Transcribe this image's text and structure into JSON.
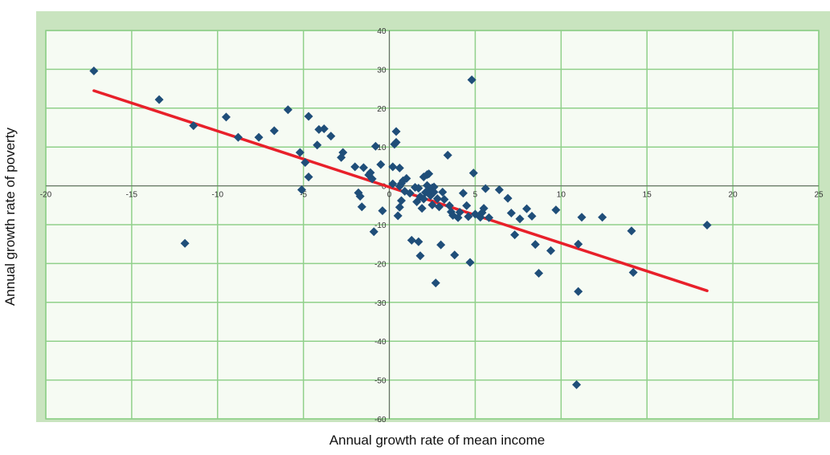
{
  "colors": {
    "outer_background": "#c9e4bf",
    "plot_background": "#f6fbf3",
    "gridline": "#90d08a",
    "axis": "#666666",
    "marker": "#1f4e79",
    "trend": "#e8202a"
  },
  "chart_data": {
    "type": "scatter",
    "title": "",
    "xlabel": "Annual growth rate of mean income",
    "ylabel": "Annual growth rate of poverty",
    "xlim": [
      -20,
      25
    ],
    "ylim": [
      -60,
      40
    ],
    "x_ticks": [
      -20,
      -15,
      -10,
      -5,
      0,
      5,
      10,
      15,
      20,
      25
    ],
    "y_ticks": [
      -60,
      -50,
      -40,
      -30,
      -20,
      -10,
      0,
      10,
      20,
      30,
      40
    ],
    "x_tick_labels": [
      "-20",
      "-15",
      "-10",
      "-5",
      "0",
      "5",
      "10",
      "15",
      "20",
      "25"
    ],
    "y_tick_labels": [
      "-60",
      "-50",
      "-40",
      "-30",
      "-20",
      "-10",
      "0",
      "10",
      "20",
      "30",
      "40"
    ],
    "grid": "horizontal and vertical",
    "marker": "diamond",
    "series": [
      {
        "points": [
          [
            -17.2,
            29.6
          ],
          [
            -13.4,
            22.2
          ],
          [
            -11.4,
            15.5
          ],
          [
            -11.9,
            -14.8
          ],
          [
            -9.5,
            17.7
          ],
          [
            -8.8,
            12.5
          ],
          [
            -7.6,
            12.5
          ],
          [
            -6.7,
            14.2
          ],
          [
            -5.9,
            19.6
          ],
          [
            -5.2,
            8.6
          ],
          [
            -5.1,
            -1.0
          ],
          [
            -4.9,
            6.0
          ],
          [
            -4.7,
            2.3
          ],
          [
            -4.7,
            17.9
          ],
          [
            -4.2,
            10.5
          ],
          [
            -4.1,
            14.5
          ],
          [
            -3.8,
            14.7
          ],
          [
            -3.4,
            12.8
          ],
          [
            -2.8,
            7.3
          ],
          [
            -2.7,
            8.6
          ],
          [
            -2.0,
            4.9
          ],
          [
            -1.8,
            -1.8
          ],
          [
            -1.7,
            -2.7
          ],
          [
            -1.6,
            -5.4
          ],
          [
            -1.5,
            4.7
          ],
          [
            -1.2,
            2.8
          ],
          [
            -1.1,
            3.4
          ],
          [
            -1.0,
            1.8
          ],
          [
            -0.9,
            -11.8
          ],
          [
            -0.8,
            10.2
          ],
          [
            -0.5,
            5.5
          ],
          [
            -0.4,
            -6.4
          ],
          [
            0.2,
            4.9
          ],
          [
            0.6,
            4.6
          ],
          [
            0.3,
            10.7
          ],
          [
            0.2,
            0.5
          ],
          [
            0.4,
            11.2
          ],
          [
            0.4,
            14.0
          ],
          [
            0.5,
            -7.7
          ],
          [
            0.6,
            -0.1
          ],
          [
            0.7,
            0.6
          ],
          [
            0.8,
            1.3
          ],
          [
            0.9,
            -1.4
          ],
          [
            1.0,
            1.9
          ],
          [
            0.6,
            -5.5
          ],
          [
            0.7,
            -3.8
          ],
          [
            1.2,
            -1.9
          ],
          [
            1.3,
            -14.0
          ],
          [
            1.5,
            -0.4
          ],
          [
            1.6,
            -4.1
          ],
          [
            1.7,
            -0.6
          ],
          [
            1.8,
            -2.8
          ],
          [
            1.9,
            -5.8
          ],
          [
            2.0,
            -3.4
          ],
          [
            2.1,
            -1.7
          ],
          [
            2.2,
            0.1
          ],
          [
            2.3,
            -1.1
          ],
          [
            2.4,
            -2.5
          ],
          [
            2.5,
            -4.9
          ],
          [
            2.6,
            -0.3
          ],
          [
            1.7,
            -14.4
          ],
          [
            1.8,
            -18.0
          ],
          [
            2.0,
            2.3
          ],
          [
            2.2,
            2.9
          ],
          [
            2.3,
            3.1
          ],
          [
            2.5,
            -0.5
          ],
          [
            2.6,
            -1.6
          ],
          [
            2.7,
            -25.0
          ],
          [
            2.8,
            -3.3
          ],
          [
            2.9,
            -5.4
          ],
          [
            3.0,
            -15.2
          ],
          [
            3.1,
            -1.6
          ],
          [
            3.2,
            -3.5
          ],
          [
            3.4,
            7.9
          ],
          [
            3.5,
            -5.1
          ],
          [
            3.6,
            -6.7
          ],
          [
            3.7,
            -7.6
          ],
          [
            3.8,
            -17.8
          ],
          [
            4.0,
            -8.2
          ],
          [
            4.1,
            -6.8
          ],
          [
            4.3,
            -1.9
          ],
          [
            4.5,
            -5.1
          ],
          [
            4.6,
            -7.9
          ],
          [
            4.7,
            -19.7
          ],
          [
            4.8,
            27.3
          ],
          [
            4.9,
            3.3
          ],
          [
            5.0,
            -7.3
          ],
          [
            5.3,
            -8.1
          ],
          [
            5.4,
            -6.9
          ],
          [
            5.5,
            -5.8
          ],
          [
            5.6,
            -0.7
          ],
          [
            5.8,
            -8.2
          ],
          [
            6.4,
            -1.0
          ],
          [
            6.9,
            -3.2
          ],
          [
            7.1,
            -7.0
          ],
          [
            7.3,
            -12.6
          ],
          [
            7.6,
            -8.5
          ],
          [
            8.0,
            -5.9
          ],
          [
            8.3,
            -7.8
          ],
          [
            8.5,
            -15.1
          ],
          [
            8.7,
            -22.5
          ],
          [
            9.4,
            -16.7
          ],
          [
            9.7,
            -6.2
          ],
          [
            10.9,
            -51.2
          ],
          [
            11.0,
            -15.0
          ],
          [
            11.2,
            -8.1
          ],
          [
            11.0,
            -27.2
          ],
          [
            12.4,
            -8.1
          ],
          [
            14.1,
            -11.6
          ],
          [
            14.2,
            -22.3
          ],
          [
            18.5,
            -10.1
          ]
        ]
      }
    ],
    "trendline": {
      "type": "linear",
      "points": [
        [
          -17.2,
          24.5
        ],
        [
          18.5,
          -27.0
        ]
      ]
    }
  }
}
